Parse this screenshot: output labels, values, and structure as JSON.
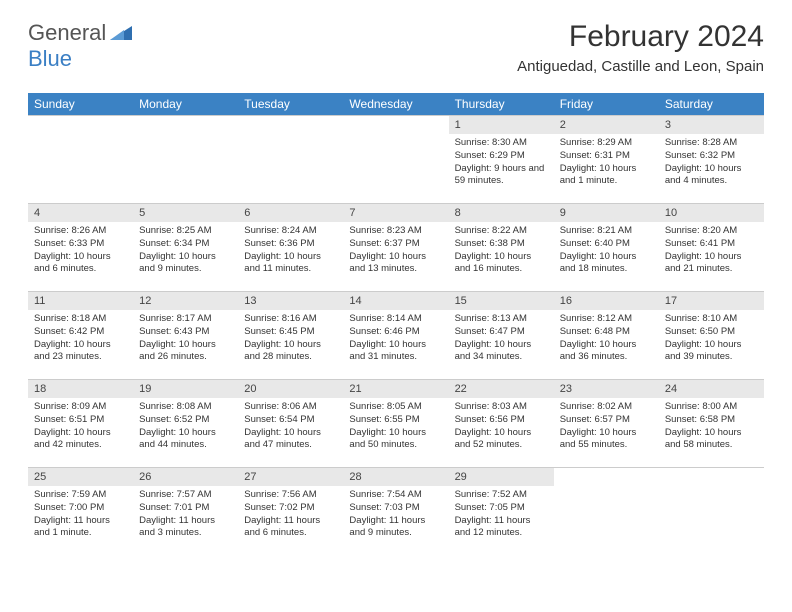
{
  "logo": {
    "general": "General",
    "blue": "Blue"
  },
  "title": "February 2024",
  "location": "Antiguedad, Castille and Leon, Spain",
  "colors": {
    "header_bg": "#3b82c4",
    "header_text": "#ffffff",
    "daynum_bg": "#e8e8e8",
    "logo_accent": "#3b7fc4",
    "logo_gray": "#555555"
  },
  "weekdays": [
    "Sunday",
    "Monday",
    "Tuesday",
    "Wednesday",
    "Thursday",
    "Friday",
    "Saturday"
  ],
  "weeks": [
    [
      null,
      null,
      null,
      null,
      {
        "n": "1",
        "sr": "Sunrise: 8:30 AM",
        "ss": "Sunset: 6:29 PM",
        "dl": "Daylight: 9 hours and 59 minutes."
      },
      {
        "n": "2",
        "sr": "Sunrise: 8:29 AM",
        "ss": "Sunset: 6:31 PM",
        "dl": "Daylight: 10 hours and 1 minute."
      },
      {
        "n": "3",
        "sr": "Sunrise: 8:28 AM",
        "ss": "Sunset: 6:32 PM",
        "dl": "Daylight: 10 hours and 4 minutes."
      }
    ],
    [
      {
        "n": "4",
        "sr": "Sunrise: 8:26 AM",
        "ss": "Sunset: 6:33 PM",
        "dl": "Daylight: 10 hours and 6 minutes."
      },
      {
        "n": "5",
        "sr": "Sunrise: 8:25 AM",
        "ss": "Sunset: 6:34 PM",
        "dl": "Daylight: 10 hours and 9 minutes."
      },
      {
        "n": "6",
        "sr": "Sunrise: 8:24 AM",
        "ss": "Sunset: 6:36 PM",
        "dl": "Daylight: 10 hours and 11 minutes."
      },
      {
        "n": "7",
        "sr": "Sunrise: 8:23 AM",
        "ss": "Sunset: 6:37 PM",
        "dl": "Daylight: 10 hours and 13 minutes."
      },
      {
        "n": "8",
        "sr": "Sunrise: 8:22 AM",
        "ss": "Sunset: 6:38 PM",
        "dl": "Daylight: 10 hours and 16 minutes."
      },
      {
        "n": "9",
        "sr": "Sunrise: 8:21 AM",
        "ss": "Sunset: 6:40 PM",
        "dl": "Daylight: 10 hours and 18 minutes."
      },
      {
        "n": "10",
        "sr": "Sunrise: 8:20 AM",
        "ss": "Sunset: 6:41 PM",
        "dl": "Daylight: 10 hours and 21 minutes."
      }
    ],
    [
      {
        "n": "11",
        "sr": "Sunrise: 8:18 AM",
        "ss": "Sunset: 6:42 PM",
        "dl": "Daylight: 10 hours and 23 minutes."
      },
      {
        "n": "12",
        "sr": "Sunrise: 8:17 AM",
        "ss": "Sunset: 6:43 PM",
        "dl": "Daylight: 10 hours and 26 minutes."
      },
      {
        "n": "13",
        "sr": "Sunrise: 8:16 AM",
        "ss": "Sunset: 6:45 PM",
        "dl": "Daylight: 10 hours and 28 minutes."
      },
      {
        "n": "14",
        "sr": "Sunrise: 8:14 AM",
        "ss": "Sunset: 6:46 PM",
        "dl": "Daylight: 10 hours and 31 minutes."
      },
      {
        "n": "15",
        "sr": "Sunrise: 8:13 AM",
        "ss": "Sunset: 6:47 PM",
        "dl": "Daylight: 10 hours and 34 minutes."
      },
      {
        "n": "16",
        "sr": "Sunrise: 8:12 AM",
        "ss": "Sunset: 6:48 PM",
        "dl": "Daylight: 10 hours and 36 minutes."
      },
      {
        "n": "17",
        "sr": "Sunrise: 8:10 AM",
        "ss": "Sunset: 6:50 PM",
        "dl": "Daylight: 10 hours and 39 minutes."
      }
    ],
    [
      {
        "n": "18",
        "sr": "Sunrise: 8:09 AM",
        "ss": "Sunset: 6:51 PM",
        "dl": "Daylight: 10 hours and 42 minutes."
      },
      {
        "n": "19",
        "sr": "Sunrise: 8:08 AM",
        "ss": "Sunset: 6:52 PM",
        "dl": "Daylight: 10 hours and 44 minutes."
      },
      {
        "n": "20",
        "sr": "Sunrise: 8:06 AM",
        "ss": "Sunset: 6:54 PM",
        "dl": "Daylight: 10 hours and 47 minutes."
      },
      {
        "n": "21",
        "sr": "Sunrise: 8:05 AM",
        "ss": "Sunset: 6:55 PM",
        "dl": "Daylight: 10 hours and 50 minutes."
      },
      {
        "n": "22",
        "sr": "Sunrise: 8:03 AM",
        "ss": "Sunset: 6:56 PM",
        "dl": "Daylight: 10 hours and 52 minutes."
      },
      {
        "n": "23",
        "sr": "Sunrise: 8:02 AM",
        "ss": "Sunset: 6:57 PM",
        "dl": "Daylight: 10 hours and 55 minutes."
      },
      {
        "n": "24",
        "sr": "Sunrise: 8:00 AM",
        "ss": "Sunset: 6:58 PM",
        "dl": "Daylight: 10 hours and 58 minutes."
      }
    ],
    [
      {
        "n": "25",
        "sr": "Sunrise: 7:59 AM",
        "ss": "Sunset: 7:00 PM",
        "dl": "Daylight: 11 hours and 1 minute."
      },
      {
        "n": "26",
        "sr": "Sunrise: 7:57 AM",
        "ss": "Sunset: 7:01 PM",
        "dl": "Daylight: 11 hours and 3 minutes."
      },
      {
        "n": "27",
        "sr": "Sunrise: 7:56 AM",
        "ss": "Sunset: 7:02 PM",
        "dl": "Daylight: 11 hours and 6 minutes."
      },
      {
        "n": "28",
        "sr": "Sunrise: 7:54 AM",
        "ss": "Sunset: 7:03 PM",
        "dl": "Daylight: 11 hours and 9 minutes."
      },
      {
        "n": "29",
        "sr": "Sunrise: 7:52 AM",
        "ss": "Sunset: 7:05 PM",
        "dl": "Daylight: 11 hours and 12 minutes."
      },
      null,
      null
    ]
  ]
}
